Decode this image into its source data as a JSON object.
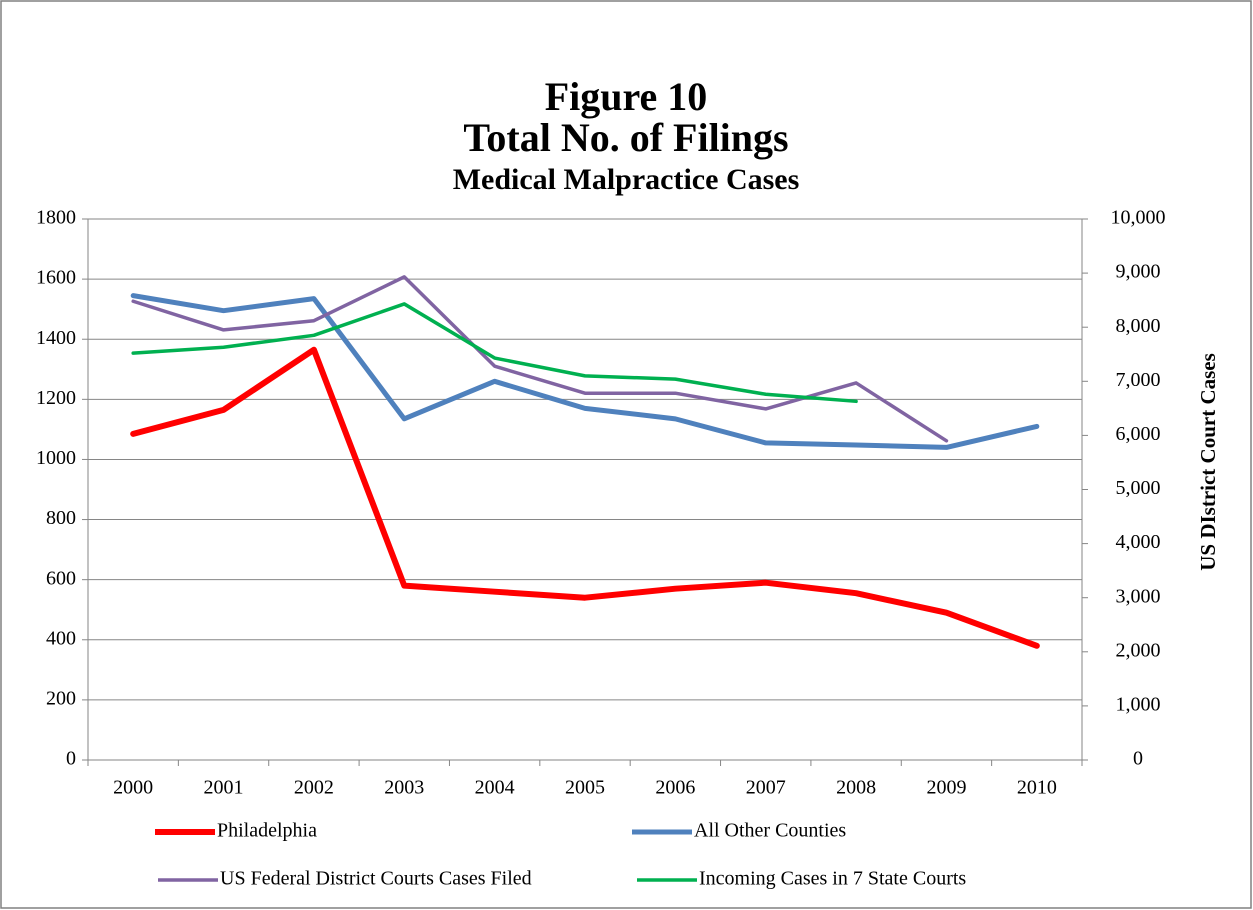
{
  "chart_data": {
    "type": "line",
    "title": [
      "Figure 10",
      "Total No. of Filings"
    ],
    "subtitle": "Medical Malpractice Cases",
    "y2label": "US DIstrict Court Cases",
    "categories": [
      "2000",
      "2001",
      "2002",
      "2003",
      "2004",
      "2005",
      "2006",
      "2007",
      "2008",
      "2009",
      "2010"
    ],
    "ylim": [
      0,
      1800
    ],
    "yticks": [
      0,
      200,
      400,
      600,
      800,
      1000,
      1200,
      1400,
      1600,
      1800
    ],
    "y2lim": [
      0,
      10000
    ],
    "y2ticks": [
      0,
      {
        "value": 1000,
        "label": "1,000"
      },
      {
        "value": 2000,
        "label": "2,000"
      },
      {
        "value": 3000,
        "label": "3,000"
      },
      {
        "value": 4000,
        "label": "4,000"
      },
      {
        "value": 5000,
        "label": "5,000"
      },
      {
        "value": 6000,
        "label": "6,000"
      },
      {
        "value": 7000,
        "label": "7,000"
      },
      {
        "value": 8000,
        "label": "8,000"
      },
      {
        "value": 9000,
        "label": "9,000"
      },
      {
        "value": 10000,
        "label": "10,000"
      }
    ],
    "grid": true,
    "legend": "bottom",
    "series": [
      {
        "name": "Philadelphia",
        "color": "#ff0000",
        "values": [
          1085,
          1165,
          1365,
          580,
          560,
          540,
          570,
          590,
          555,
          490,
          380
        ]
      },
      {
        "name": "All Other Counties",
        "color": "#4f81bd",
        "values": [
          1545,
          1495,
          1535,
          1135,
          1260,
          1170,
          1135,
          1055,
          1048,
          1040,
          1110
        ]
      },
      {
        "name": "US Federal District Courts Cases Filed",
        "color": "#8064a2",
        "axis": "y2",
        "values": [
          8480,
          7950,
          8120,
          8930,
          7280,
          6780,
          6780,
          6490,
          6970,
          5900,
          null
        ]
      },
      {
        "name": "Incoming Cases in 7 State Courts",
        "color": "#00b050",
        "axis": "y2",
        "values": [
          7520,
          7630,
          7850,
          8430,
          7430,
          7100,
          7040,
          6760,
          6630,
          null,
          null
        ]
      }
    ]
  }
}
